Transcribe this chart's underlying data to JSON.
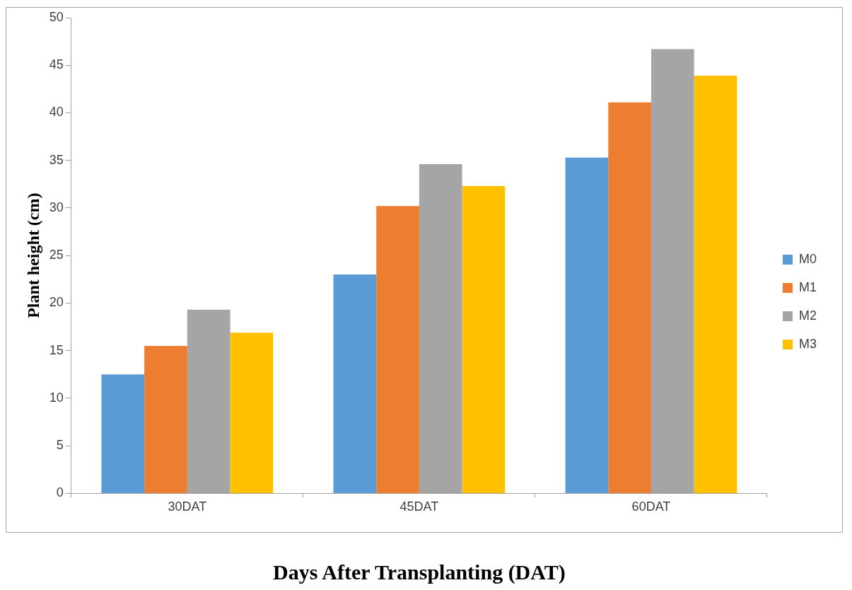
{
  "chart_data": {
    "type": "bar",
    "xlabel": "Days After Transplanting (DAT)",
    "ylabel": "Plant height (cm)",
    "categories": [
      "30DAT",
      "45DAT",
      "60DAT"
    ],
    "series": [
      {
        "name": "M0",
        "color": "#5b9bd5",
        "values": [
          12.5,
          23.0,
          35.3
        ]
      },
      {
        "name": "M1",
        "color": "#ed7d31",
        "values": [
          15.5,
          30.2,
          41.1
        ]
      },
      {
        "name": "M2",
        "color": "#a5a5a5",
        "values": [
          19.3,
          34.6,
          46.7
        ]
      },
      {
        "name": "M3",
        "color": "#ffc000",
        "values": [
          16.9,
          32.3,
          43.9
        ]
      }
    ],
    "ylim": [
      0,
      50
    ],
    "yticks": [
      0,
      5,
      10,
      15,
      20,
      25,
      30,
      35,
      40,
      45,
      50
    ],
    "grid": false,
    "legend": "right"
  }
}
